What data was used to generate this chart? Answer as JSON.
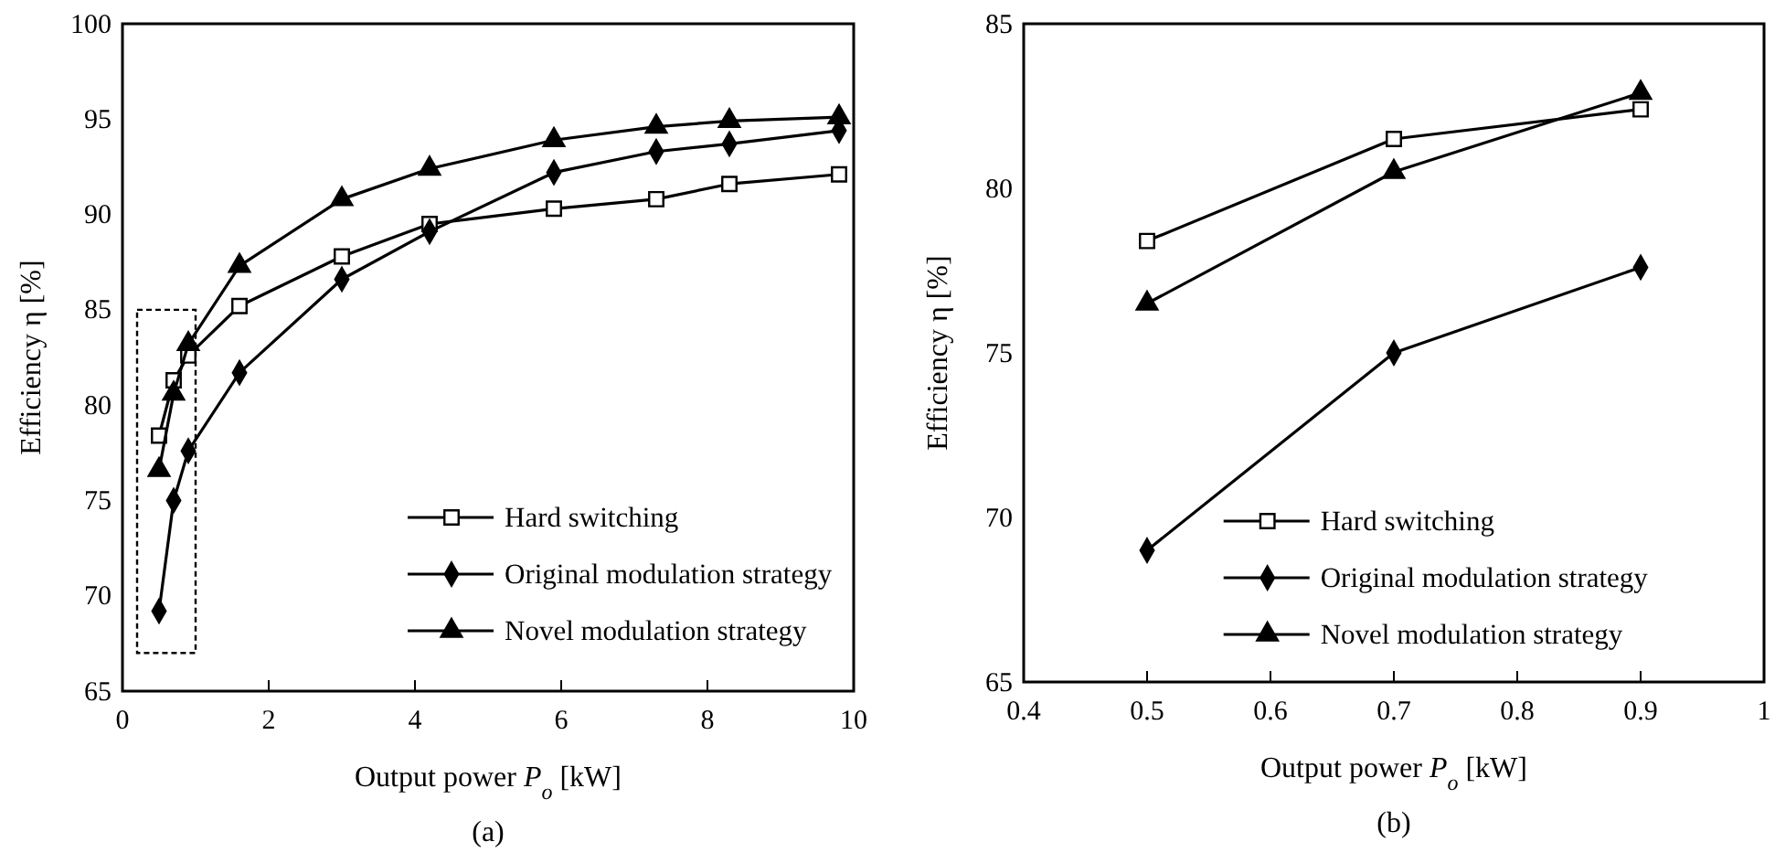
{
  "chart_data": [
    {
      "type": "line",
      "xlabel": "Output power P$_{o}$ [kW]",
      "ylabel": "Efficiency η [%]",
      "annotations": [
        "(a)"
      ],
      "xlim": [
        0,
        10
      ],
      "xticks": [
        0,
        2,
        4,
        6,
        8,
        10
      ],
      "ylim": [
        65,
        100
      ],
      "yticks": [
        65,
        70,
        75,
        80,
        85,
        90,
        95,
        100
      ],
      "grid": false,
      "legend": "bottom right",
      "line_style": "solid",
      "series": [
        {
          "name": "Hard switching",
          "color": "#000000",
          "marker": "square",
          "x": [
            0.5,
            0.7,
            0.9,
            1.6,
            3.0,
            4.2,
            5.9,
            7.3,
            8.3,
            9.8
          ],
          "values": [
            78.4,
            81.3,
            82.6,
            85.2,
            87.8,
            89.5,
            90.3,
            90.8,
            91.6,
            92.1
          ]
        },
        {
          "name": "Original modulation strategy",
          "color": "#000000",
          "marker": "diamond",
          "x": [
            0.5,
            0.7,
            0.9,
            1.6,
            3.0,
            4.2,
            5.9,
            7.3,
            8.3,
            9.8
          ],
          "values": [
            69.2,
            75.0,
            77.6,
            81.7,
            86.6,
            89.1,
            92.2,
            93.3,
            93.7,
            94.4
          ]
        },
        {
          "name": "Novel modulation strategy",
          "color": "#000000",
          "marker": "triangle",
          "x": [
            0.5,
            0.7,
            0.9,
            1.6,
            3.0,
            4.2,
            5.9,
            7.3,
            8.3,
            9.8
          ],
          "values": [
            76.6,
            80.6,
            83.2,
            87.3,
            90.8,
            92.4,
            93.9,
            94.6,
            94.9,
            95.1
          ]
        }
      ]
    },
    {
      "type": "line",
      "xlabel": "Output power P$_{o}$ [kW]",
      "ylabel": "Efficiency η [%]",
      "annotations": [
        "(b)"
      ],
      "xlim": [
        0.4,
        1
      ],
      "xticks": [
        0.4,
        0.5,
        0.6,
        0.7,
        0.8,
        0.9,
        1
      ],
      "ylim": [
        65,
        85
      ],
      "yticks": [
        65,
        70,
        75,
        80,
        85
      ],
      "grid": false,
      "legend": "bottom right",
      "line_style": "solid",
      "series": [
        {
          "name": "Hard switching",
          "color": "#000000",
          "marker": "square",
          "x": [
            0.5,
            0.7,
            0.9
          ],
          "values": [
            78.4,
            81.5,
            82.4
          ]
        },
        {
          "name": "Original modulation strategy",
          "color": "#000000",
          "marker": "diamond",
          "x": [
            0.5,
            0.7,
            0.9
          ],
          "values": [
            69.0,
            75.0,
            77.6
          ]
        },
        {
          "name": "Novel modulation strategy",
          "color": "#000000",
          "marker": "triangle",
          "x": [
            0.5,
            0.7,
            0.9
          ],
          "values": [
            76.5,
            80.5,
            82.9
          ]
        }
      ]
    }
  ]
}
